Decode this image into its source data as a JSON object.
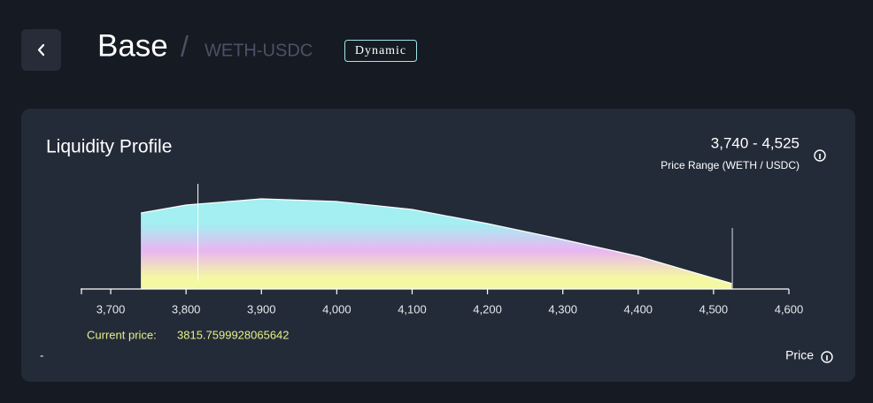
{
  "header": {
    "title": "Base",
    "separator": "/",
    "pair": "WETH-USDC",
    "badge": "Dynamic"
  },
  "card": {
    "title": "Liquidity Profile",
    "range": "3,740 - 4,525",
    "range_label": "Price Range (WETH / USDC)",
    "current_price_label": "Current price:",
    "current_price": "3815.7599928065642",
    "footer_left": "-",
    "footer_right": "Price"
  },
  "chart_data": {
    "type": "area",
    "x": [
      3740,
      3800,
      3900,
      4000,
      4100,
      4200,
      4300,
      4400,
      4525
    ],
    "values": [
      86,
      95,
      102,
      99,
      90,
      74,
      56,
      37,
      6
    ],
    "xlim": [
      3660,
      4600
    ],
    "xticks": [
      {
        "value": 3700,
        "label": "3,700"
      },
      {
        "value": 3800,
        "label": "3,800"
      },
      {
        "value": 3900,
        "label": "3,900"
      },
      {
        "value": 4000,
        "label": "4,000"
      },
      {
        "value": 4100,
        "label": "4,100"
      },
      {
        "value": 4200,
        "label": "4,200"
      },
      {
        "value": 4300,
        "label": "4,300"
      },
      {
        "value": 4400,
        "label": "4,400"
      },
      {
        "value": 4500,
        "label": "4,500"
      },
      {
        "value": 4600,
        "label": "4,600"
      }
    ],
    "ylim": [
      0,
      110
    ],
    "colors": [
      "#a3eff1",
      "#e9b6f2",
      "#f4f8a2"
    ]
  }
}
